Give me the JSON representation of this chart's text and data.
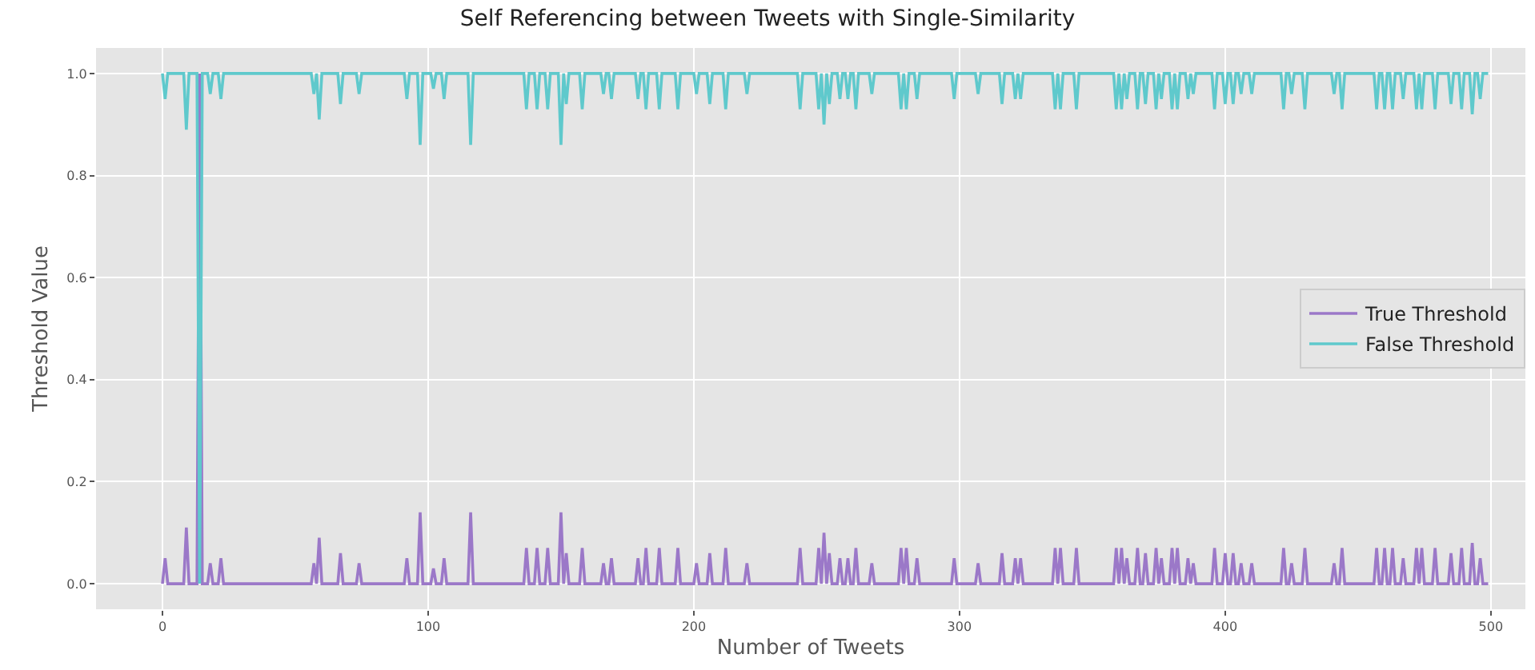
{
  "chart_data": {
    "type": "line",
    "title": "Self Referencing between Tweets with Single-Similarity",
    "xlabel": "Number of Tweets",
    "ylabel": "Threshold Value",
    "x": [
      0,
      1,
      2,
      8,
      9,
      10,
      13,
      14,
      15,
      17,
      18,
      19,
      21,
      22,
      23,
      56,
      57,
      58,
      59,
      60,
      66,
      67,
      68,
      73,
      74,
      75,
      91,
      92,
      93,
      96,
      97,
      98,
      101,
      102,
      103,
      105,
      106,
      107,
      115,
      116,
      117,
      136,
      137,
      138,
      140,
      141,
      142,
      144,
      145,
      146,
      149,
      150,
      151,
      152,
      153,
      157,
      158,
      159,
      165,
      166,
      167,
      168,
      169,
      170,
      178,
      179,
      180,
      181,
      182,
      183,
      186,
      187,
      188,
      193,
      194,
      195,
      200,
      201,
      202,
      205,
      206,
      207,
      211,
      212,
      213,
      219,
      220,
      221,
      239,
      240,
      241,
      246,
      247,
      248,
      249,
      250,
      251,
      252,
      254,
      255,
      256,
      257,
      258,
      259,
      260,
      261,
      262,
      266,
      267,
      268,
      277,
      278,
      279,
      280,
      281,
      283,
      284,
      285,
      297,
      298,
      299,
      306,
      307,
      308,
      315,
      316,
      317,
      320,
      321,
      322,
      323,
      324,
      335,
      336,
      337,
      338,
      339,
      343,
      344,
      345,
      358,
      359,
      360,
      361,
      362,
      363,
      364,
      366,
      367,
      368,
      369,
      370,
      371,
      373,
      374,
      375,
      376,
      377,
      379,
      380,
      381,
      382,
      383,
      385,
      386,
      387,
      388,
      389,
      395,
      396,
      397,
      399,
      400,
      401,
      402,
      403,
      404,
      405,
      406,
      407,
      409,
      410,
      411,
      421,
      422,
      423,
      424,
      425,
      426,
      429,
      430,
      431,
      440,
      441,
      442,
      443,
      444,
      445,
      456,
      457,
      458,
      459,
      460,
      461,
      462,
      463,
      464,
      466,
      467,
      468,
      471,
      472,
      473,
      474,
      475,
      478,
      479,
      480,
      484,
      485,
      486,
      488,
      489,
      490,
      492,
      493,
      494,
      495,
      496,
      497,
      499
    ],
    "series": [
      {
        "name": "True Threshold",
        "color": "#9b78c8",
        "values": [
          0,
          0.05,
          0,
          0,
          0.11,
          0,
          0,
          1,
          0,
          0,
          0.04,
          0,
          0,
          0.05,
          0,
          0,
          0.04,
          0,
          0.09,
          0,
          0,
          0.06,
          0,
          0,
          0.04,
          0,
          0,
          0.05,
          0,
          0,
          0.14,
          0,
          0,
          0.03,
          0,
          0,
          0.05,
          0,
          0,
          0.14,
          0,
          0,
          0.07,
          0,
          0,
          0.07,
          0,
          0,
          0.07,
          0,
          0,
          0.14,
          0,
          0.06,
          0,
          0,
          0.07,
          0,
          0,
          0.04,
          0,
          0,
          0.05,
          0,
          0,
          0.05,
          0,
          0,
          0.07,
          0,
          0,
          0.07,
          0,
          0,
          0.07,
          0,
          0,
          0.04,
          0,
          0,
          0.06,
          0,
          0,
          0.07,
          0,
          0,
          0.04,
          0,
          0,
          0.07,
          0,
          0,
          0.07,
          0,
          0.1,
          0,
          0.06,
          0,
          0,
          0.05,
          0,
          0,
          0.05,
          0,
          0,
          0.07,
          0,
          0,
          0.04,
          0,
          0,
          0.07,
          0,
          0.07,
          0,
          0,
          0.05,
          0,
          0,
          0.05,
          0,
          0,
          0.04,
          0,
          0,
          0.06,
          0,
          0,
          0.05,
          0,
          0.05,
          0,
          0,
          0.07,
          0,
          0.07,
          0,
          0,
          0.07,
          0,
          0,
          0.07,
          0,
          0.07,
          0,
          0.05,
          0,
          0,
          0.07,
          0,
          0,
          0.06,
          0,
          0,
          0.07,
          0,
          0.05,
          0,
          0,
          0.07,
          0,
          0.07,
          0,
          0,
          0.05,
          0,
          0.04,
          0,
          0,
          0.07,
          0,
          0,
          0.06,
          0,
          0,
          0.06,
          0,
          0,
          0.04,
          0,
          0,
          0.04,
          0,
          0,
          0.07,
          0,
          0,
          0.04,
          0,
          0,
          0.07,
          0,
          0,
          0.04,
          0,
          0,
          0.07,
          0,
          0,
          0.07,
          0,
          0,
          0.07,
          0,
          0,
          0.07,
          0,
          0,
          0.05,
          0,
          0,
          0.07,
          0,
          0.07,
          0,
          0,
          0.07,
          0,
          0,
          0.06,
          0,
          0,
          0.07,
          0,
          0,
          0.08,
          0,
          0,
          0.05,
          0,
          0
        ]
      },
      {
        "name": "False Threshold",
        "color": "#5fc9cc",
        "values": [
          1,
          0.95,
          1,
          1,
          0.89,
          1,
          1,
          0,
          1,
          1,
          0.96,
          1,
          1,
          0.95,
          1,
          1,
          0.96,
          1,
          0.91,
          1,
          1,
          0.94,
          1,
          1,
          0.96,
          1,
          1,
          0.95,
          1,
          1,
          0.86,
          1,
          1,
          0.97,
          1,
          1,
          0.95,
          1,
          1,
          0.86,
          1,
          1,
          0.93,
          1,
          1,
          0.93,
          1,
          1,
          0.93,
          1,
          1,
          0.86,
          1,
          0.94,
          1,
          1,
          0.93,
          1,
          1,
          0.96,
          1,
          1,
          0.95,
          1,
          1,
          0.95,
          1,
          1,
          0.93,
          1,
          1,
          0.93,
          1,
          1,
          0.93,
          1,
          1,
          0.96,
          1,
          1,
          0.94,
          1,
          1,
          0.93,
          1,
          1,
          0.96,
          1,
          1,
          0.93,
          1,
          1,
          0.93,
          1,
          0.9,
          1,
          0.94,
          1,
          1,
          0.95,
          1,
          1,
          0.95,
          1,
          1,
          0.93,
          1,
          1,
          0.96,
          1,
          1,
          0.93,
          1,
          0.93,
          1,
          1,
          0.95,
          1,
          1,
          0.95,
          1,
          1,
          0.96,
          1,
          1,
          0.94,
          1,
          1,
          0.95,
          1,
          0.95,
          1,
          1,
          0.93,
          1,
          0.93,
          1,
          1,
          0.93,
          1,
          1,
          0.93,
          1,
          0.93,
          1,
          0.95,
          1,
          1,
          0.93,
          1,
          1,
          0.94,
          1,
          1,
          0.93,
          1,
          0.95,
          1,
          1,
          0.93,
          1,
          0.93,
          1,
          1,
          0.95,
          1,
          0.96,
          1,
          1,
          0.93,
          1,
          1,
          0.94,
          1,
          1,
          0.94,
          1,
          1,
          0.96,
          1,
          1,
          0.96,
          1,
          1,
          0.93,
          1,
          1,
          0.96,
          1,
          1,
          0.93,
          1,
          1,
          0.96,
          1,
          1,
          0.93,
          1,
          1,
          0.93,
          1,
          1,
          0.93,
          1,
          1,
          0.93,
          1,
          1,
          0.95,
          1,
          1,
          0.93,
          1,
          0.93,
          1,
          1,
          0.93,
          1,
          1,
          0.94,
          1,
          1,
          0.93,
          1,
          1,
          0.92,
          1,
          1,
          0.95,
          1,
          1
        ]
      }
    ],
    "xlim": [
      -25,
      513
    ],
    "xticks": [
      0,
      100,
      200,
      300,
      400,
      500
    ],
    "ylim": [
      -0.05,
      1.05
    ],
    "yticks": [
      {
        "value": 0,
        "label": "0.0"
      },
      0.2,
      0.4,
      0.6,
      0.8,
      {
        "value": 1,
        "label": "1.0"
      }
    ],
    "grid": true,
    "legend": "right",
    "line_style": "solid",
    "marker": "none"
  }
}
